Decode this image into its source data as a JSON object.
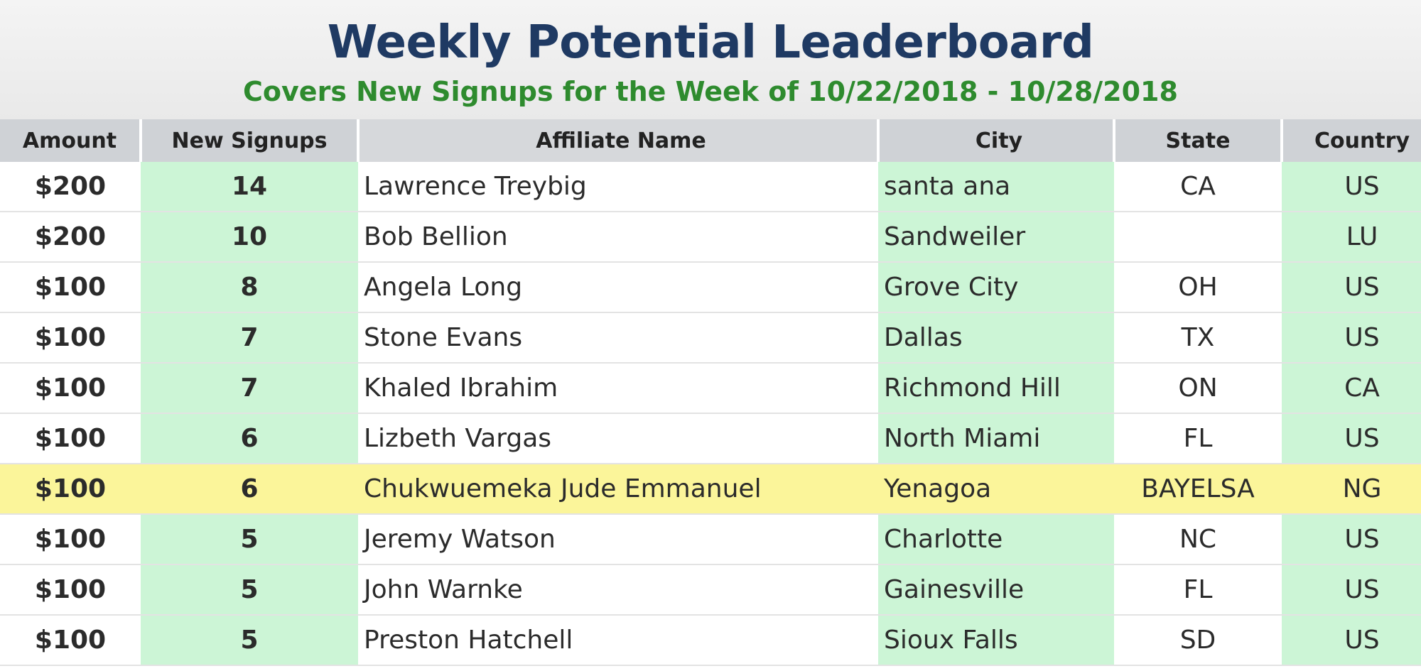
{
  "header": {
    "title": "Weekly Potential Leaderboard",
    "subtitle": "Covers New Signups for the Week of 10/22/2018 - 10/28/2018"
  },
  "columns": [
    "Amount",
    "New Signups",
    "Affiliate Name",
    "City",
    "State",
    "Country"
  ],
  "rows": [
    {
      "amount": "$200",
      "signups": "14",
      "name": "Lawrence Treybig",
      "city": "santa ana",
      "state": "CA",
      "country": "US"
    },
    {
      "amount": "$200",
      "signups": "10",
      "name": "Bob Bellion",
      "city": "Sandweiler",
      "state": "",
      "country": "LU"
    },
    {
      "amount": "$100",
      "signups": "8",
      "name": "Angela Long",
      "city": "Grove City",
      "state": "OH",
      "country": "US"
    },
    {
      "amount": "$100",
      "signups": "7",
      "name": "Stone Evans",
      "city": "Dallas",
      "state": "TX",
      "country": "US"
    },
    {
      "amount": "$100",
      "signups": "7",
      "name": "Khaled Ibrahim",
      "city": "Richmond Hill",
      "state": "ON",
      "country": "CA"
    },
    {
      "amount": "$100",
      "signups": "6",
      "name": "Lizbeth Vargas",
      "city": "North Miami",
      "state": "FL",
      "country": "US"
    },
    {
      "amount": "$100",
      "signups": "6",
      "name": "Chukwuemeka Jude Emmanuel",
      "city": "Yenagoa",
      "state": "BAYELSA",
      "country": "NG",
      "highlight": true
    },
    {
      "amount": "$100",
      "signups": "5",
      "name": "Jeremy Watson",
      "city": "Charlotte",
      "state": "NC",
      "country": "US"
    },
    {
      "amount": "$100",
      "signups": "5",
      "name": "John Warnke",
      "city": "Gainesville",
      "state": "FL",
      "country": "US"
    },
    {
      "amount": "$100",
      "signups": "5",
      "name": "Preston Hatchell",
      "city": "Sioux Falls",
      "state": "SD",
      "country": "US"
    }
  ],
  "colors": {
    "title": "#1f3a63",
    "subtitle": "#2e8b2e",
    "green_column": "#ccf5d6",
    "highlight_row": "#fbf59a",
    "header_row": "#cfd2d6"
  }
}
